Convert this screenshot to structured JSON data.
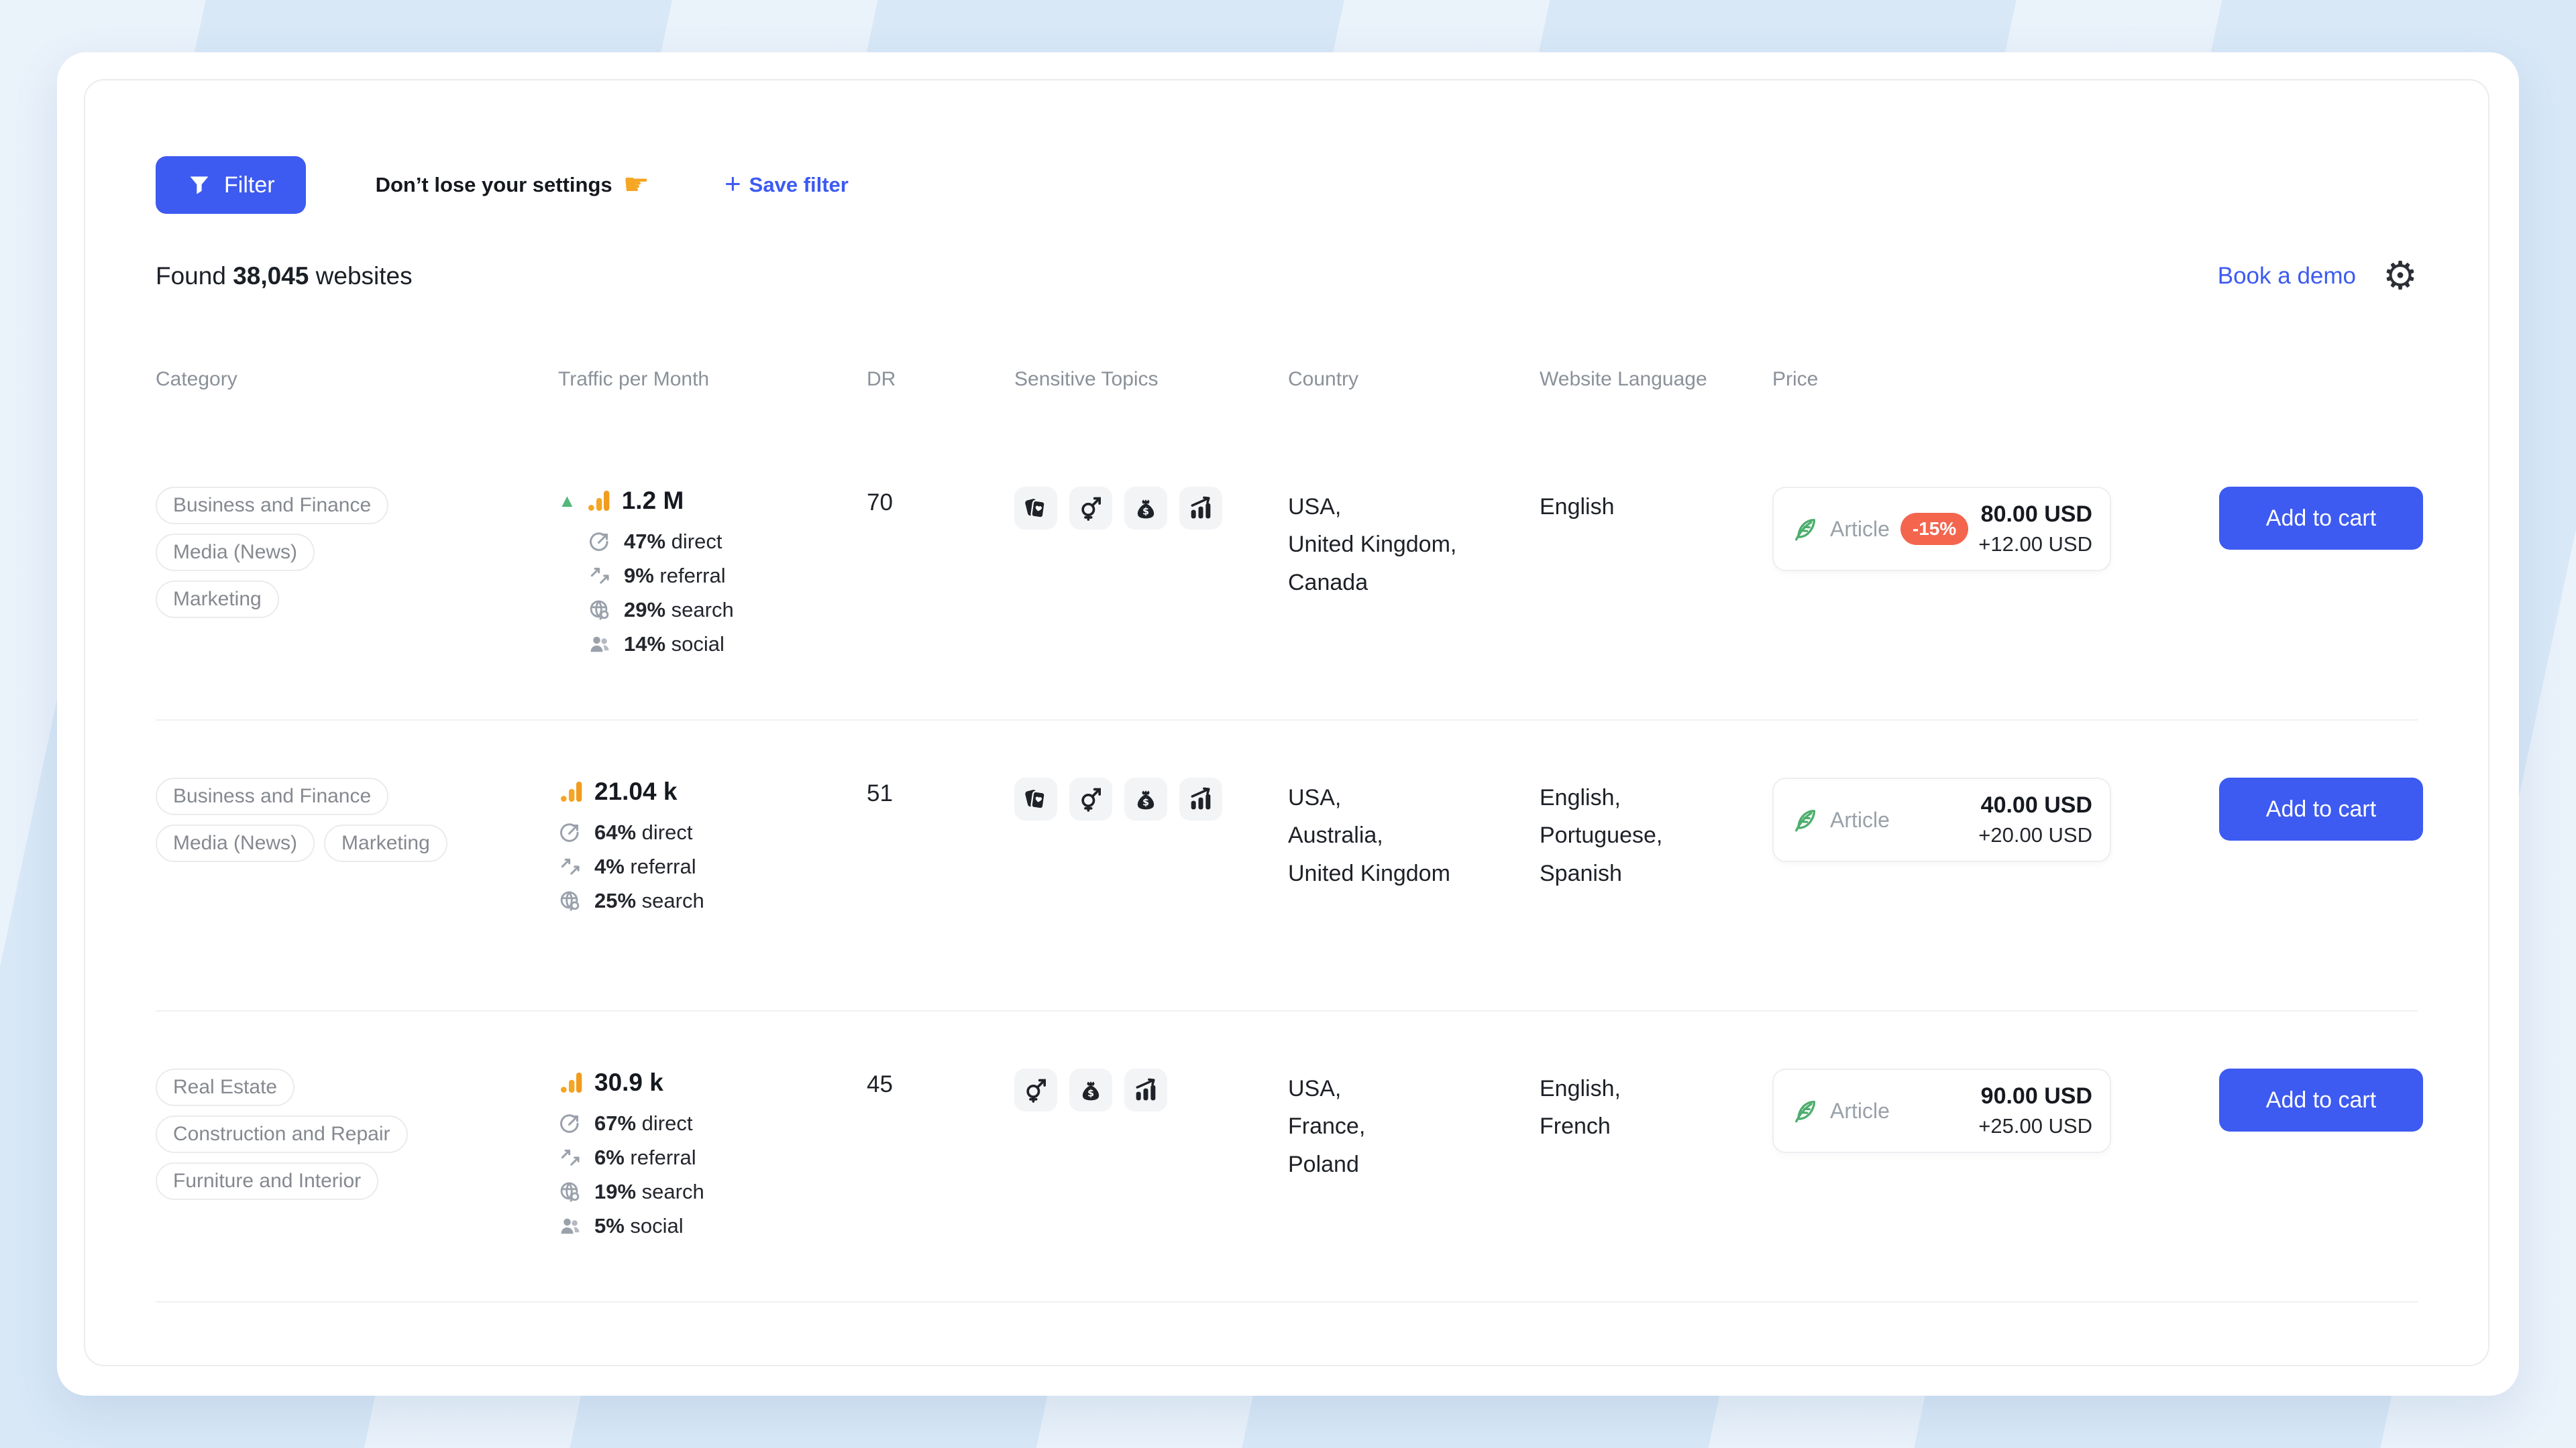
{
  "colors": {
    "accent": "#3d5af1",
    "discount_badge": "#f4654e",
    "trend_up": "#53b87a",
    "analytics_bars": "#f5a623",
    "feather_green": "#4cae6d"
  },
  "toolbar": {
    "filter_label": "Filter",
    "settings_hint": "Don’t lose your settings",
    "pointer_glyph": "☛",
    "save_plus": "+",
    "save_filter_label": "Save filter"
  },
  "summary": {
    "found_prefix": "Found",
    "count": "38,045",
    "found_suffix": "websites",
    "book_demo_label": "Book a demo",
    "gear_glyph": "⚙"
  },
  "table": {
    "headers": [
      "Category",
      "Traffic per Month",
      "DR",
      "Sensitive Topics",
      "Country",
      "Website Language",
      "Price"
    ],
    "rows": [
      {
        "category_lines": [
          [
            "Business and Finance"
          ],
          [
            "Media (News)"
          ],
          [
            "Marketing"
          ]
        ],
        "traffic": {
          "total": "1.2 M",
          "trend_up": true,
          "sources": [
            {
              "icon": "direct-icon",
              "value": "47%",
              "label": "direct"
            },
            {
              "icon": "referral-icon",
              "value": "9%",
              "label": "referral"
            },
            {
              "icon": "search-icon",
              "value": "29%",
              "label": "search"
            },
            {
              "icon": "social-icon",
              "value": "14%",
              "label": "social"
            }
          ]
        },
        "dr": "70",
        "sensitive_topics": [
          "playing-cards-icon",
          "gender-icon",
          "money-bag-icon",
          "growth-chart-icon"
        ],
        "countries": [
          "USA,",
          "United Kingdom,",
          "Canada"
        ],
        "languages": [
          "English"
        ],
        "price": {
          "type_label": "Article",
          "discount": "-15%",
          "amount": "80.00 USD",
          "extra": "+12.00 USD"
        },
        "cart_label": "Add to cart"
      },
      {
        "category_lines": [
          [
            "Business and Finance"
          ],
          [
            "Media (News)",
            "Marketing"
          ]
        ],
        "traffic": {
          "total": "21.04 k",
          "trend_up": false,
          "sources": [
            {
              "icon": "direct-icon",
              "value": "64%",
              "label": "direct"
            },
            {
              "icon": "referral-icon",
              "value": "4%",
              "label": "referral"
            },
            {
              "icon": "search-icon",
              "value": "25%",
              "label": "search"
            }
          ]
        },
        "dr": "51",
        "sensitive_topics": [
          "playing-cards-icon",
          "gender-icon",
          "money-bag-icon",
          "growth-chart-icon"
        ],
        "countries": [
          "USA,",
          "Australia,",
          "United Kingdom"
        ],
        "languages": [
          "English,",
          "Portuguese,",
          "Spanish"
        ],
        "price": {
          "type_label": "Article",
          "discount": null,
          "amount": "40.00 USD",
          "extra": "+20.00 USD"
        },
        "cart_label": "Add to cart"
      },
      {
        "category_lines": [
          [
            "Real Estate"
          ],
          [
            "Construction and Repair"
          ],
          [
            "Furniture and Interior"
          ]
        ],
        "traffic": {
          "total": "30.9 k",
          "trend_up": false,
          "sources": [
            {
              "icon": "direct-icon",
              "value": "67%",
              "label": "direct"
            },
            {
              "icon": "referral-icon",
              "value": "6%",
              "label": "referral"
            },
            {
              "icon": "search-icon",
              "value": "19%",
              "label": "search"
            },
            {
              "icon": "social-icon",
              "value": "5%",
              "label": "social"
            }
          ]
        },
        "dr": "45",
        "sensitive_topics": [
          "gender-icon",
          "money-bag-icon",
          "growth-chart-icon"
        ],
        "countries": [
          "USA,",
          "France,",
          "Poland"
        ],
        "languages": [
          "English,",
          "French"
        ],
        "price": {
          "type_label": "Article",
          "discount": null,
          "amount": "90.00 USD",
          "extra": "+25.00 USD"
        },
        "cart_label": "Add to cart"
      }
    ]
  }
}
